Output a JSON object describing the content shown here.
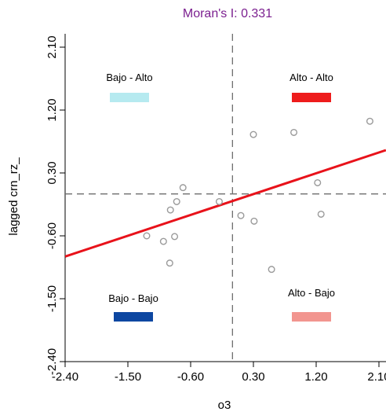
{
  "chart_data": {
    "type": "scatter",
    "title": "Moran's I: 0.331",
    "xlabel": "o3",
    "ylabel": "lagged crn_rz_",
    "xlim": [
      -2.4,
      2.1
    ],
    "ylim": [
      -2.4,
      2.1
    ],
    "x_ticks": [
      "-2.40",
      "-1.50",
      "-0.60",
      "0.30",
      "1.20",
      "2.10"
    ],
    "y_ticks": [
      "-2.40",
      "-1.50",
      "-0.60",
      "0.30",
      "1.20",
      "2.10"
    ],
    "points": [
      {
        "x": -0.71,
        "y": 0.09
      },
      {
        "x": -0.8,
        "y": -0.11
      },
      {
        "x": -0.89,
        "y": -0.23
      },
      {
        "x": -0.19,
        "y": -0.11
      },
      {
        "x": 0.3,
        "y": 0.85
      },
      {
        "x": 0.88,
        "y": 0.88
      },
      {
        "x": 1.97,
        "y": 1.04
      },
      {
        "x": 1.22,
        "y": 0.16
      },
      {
        "x": -0.83,
        "y": -0.61
      },
      {
        "x": -0.99,
        "y": -0.68
      },
      {
        "x": -1.23,
        "y": -0.6
      },
      {
        "x": -0.9,
        "y": -0.99
      },
      {
        "x": 0.12,
        "y": -0.31
      },
      {
        "x": 0.31,
        "y": -0.39
      },
      {
        "x": 0.56,
        "y": -1.08
      },
      {
        "x": 1.27,
        "y": -0.29
      }
    ],
    "regression_line": {
      "slope": 0.331,
      "intercept": -0.102,
      "color": "#e8121a"
    },
    "reference_lines": {
      "x": 0.0,
      "y": 0.0
    },
    "quadrants": [
      {
        "label": "Bajo - Alto",
        "color": "#b6eaf0"
      },
      {
        "label": "Alto - Alto",
        "color": "#ee1c1c"
      },
      {
        "label": "Bajo - Bajo",
        "color": "#0d47a1"
      },
      {
        "label": "Alto - Bajo",
        "color": "#f2958f"
      }
    ],
    "title_color": "#7b1f8f",
    "point_color": "#9a9a9a",
    "grid": false
  }
}
